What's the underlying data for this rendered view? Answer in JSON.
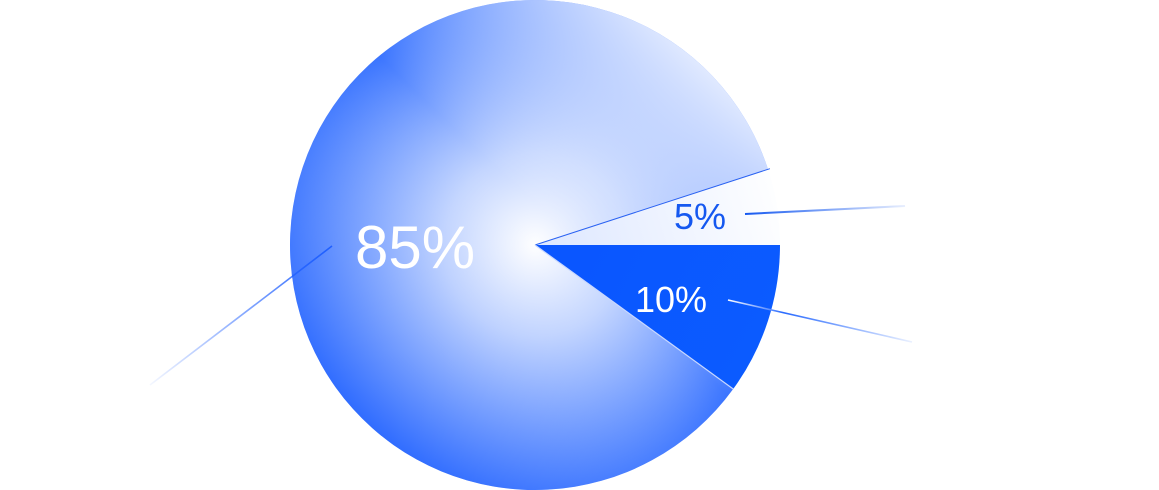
{
  "chart_data": {
    "type": "pie",
    "labels": [
      "",
      "",
      ""
    ],
    "slices": [
      {
        "value": 85,
        "label": "85%",
        "color": "#7fa6ff",
        "label_color": "#ffffff"
      },
      {
        "value": 10,
        "label": "10%",
        "color": "#0b5cff",
        "label_color": "#ffffff"
      },
      {
        "value": 5,
        "label": "5%",
        "color": "#f4f7ff",
        "label_color": "#1558f0"
      }
    ],
    "start": "3 o'clock",
    "direction": "counter-clockwise",
    "legend": "none"
  }
}
